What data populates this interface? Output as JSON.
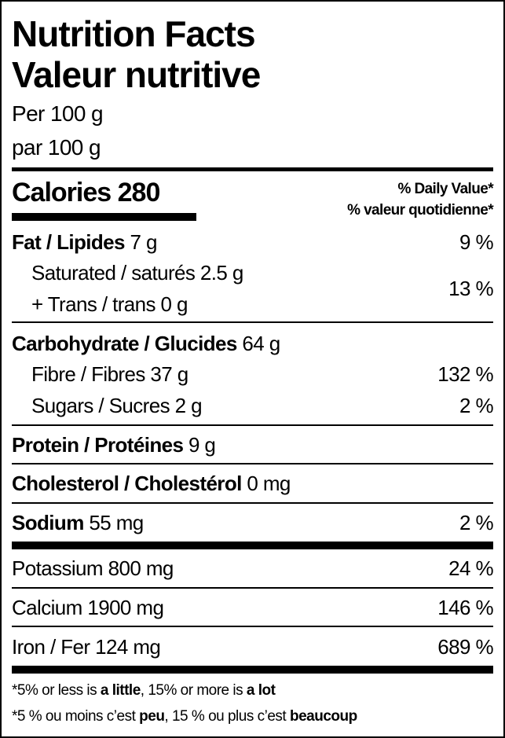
{
  "title_en": "Nutrition Facts",
  "title_fr": "Valeur nutritive",
  "serving_en": "Per 100 g",
  "serving_fr": "par 100 g",
  "calories": {
    "label": "Calories",
    "value": "280"
  },
  "daily_value_en": "% Daily Value*",
  "daily_value_fr": "% valeur quotidienne*",
  "nutrients": {
    "fat": {
      "label": "Fat / Lipides",
      "amount": "7 g",
      "dv": "9 %"
    },
    "saturated": {
      "label": "Saturated / saturés",
      "amount": "2.5 g"
    },
    "trans": {
      "label": "+ Trans / trans",
      "amount": "0 g"
    },
    "sat_trans_dv": "13 %",
    "carbohydrate": {
      "label": "Carbohydrate / Glucides",
      "amount": "64 g"
    },
    "fibre": {
      "label": "Fibre / Fibres",
      "amount": "37 g",
      "dv": "132 %"
    },
    "sugars": {
      "label": "Sugars / Sucres",
      "amount": "2 g",
      "dv": "2 %"
    },
    "protein": {
      "label": "Protein / Protéines",
      "amount": "9 g"
    },
    "cholesterol": {
      "label": "Cholesterol / Cholestérol",
      "amount": "0 mg"
    },
    "sodium": {
      "label": "Sodium",
      "amount": "55 mg",
      "dv": "2 %"
    },
    "potassium": {
      "label": "Potassium",
      "amount": "800 mg",
      "dv": "24 %"
    },
    "calcium": {
      "label": "Calcium",
      "amount": "1900 mg",
      "dv": "146 %"
    },
    "iron": {
      "label": "Iron / Fer",
      "amount": "124 mg",
      "dv": "689 %"
    }
  },
  "footnote_en": {
    "p1": "*5% or less is ",
    "b1": "a little",
    "p2": ", 15% or more is ",
    "b2": "a lot"
  },
  "footnote_fr": {
    "p1": "*5 % ou moins c’est ",
    "b1": "peu",
    "p2": ", 15 % ou plus c’est ",
    "b2": "beaucoup"
  }
}
